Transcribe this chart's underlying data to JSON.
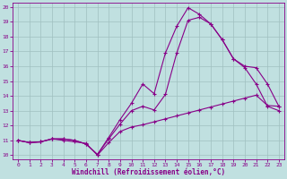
{
  "xlabel": "Windchill (Refroidissement éolien,°C)",
  "bg_color": "#c0e0e0",
  "grid_color": "#a0c0c0",
  "line_color": "#880088",
  "xlim": [
    -0.5,
    23.5
  ],
  "ylim": [
    9.7,
    20.3
  ],
  "yticks": [
    10,
    11,
    12,
    13,
    14,
    15,
    16,
    17,
    18,
    19,
    20
  ],
  "xticks": [
    0,
    1,
    2,
    3,
    4,
    5,
    6,
    7,
    8,
    9,
    10,
    11,
    12,
    13,
    14,
    15,
    16,
    17,
    18,
    19,
    20,
    21,
    22,
    23
  ],
  "curve1_x": [
    0,
    1,
    2,
    3,
    4,
    5,
    6,
    7,
    8,
    9,
    10,
    11,
    12,
    13,
    14,
    15,
    16,
    17,
    18,
    19,
    20,
    21,
    22,
    23
  ],
  "curve1_y": [
    11.0,
    10.85,
    10.9,
    11.1,
    11.0,
    10.9,
    10.8,
    10.0,
    10.85,
    11.6,
    11.9,
    12.05,
    12.25,
    12.45,
    12.65,
    12.85,
    13.05,
    13.25,
    13.45,
    13.65,
    13.85,
    14.05,
    13.35,
    13.3
  ],
  "curve2_x": [
    0,
    1,
    2,
    3,
    4,
    5,
    6,
    7,
    8,
    9,
    10,
    11,
    12,
    13,
    14,
    15,
    16,
    17,
    18,
    19,
    20,
    21,
    22,
    23
  ],
  "curve2_y": [
    11.0,
    10.85,
    10.9,
    11.1,
    11.1,
    11.0,
    10.75,
    10.05,
    11.1,
    12.1,
    13.0,
    13.3,
    13.05,
    14.1,
    16.9,
    19.1,
    19.3,
    18.85,
    17.8,
    16.5,
    16.0,
    15.9,
    14.8,
    13.3
  ],
  "curve3_x": [
    0,
    1,
    2,
    3,
    4,
    5,
    6,
    7,
    8,
    9,
    10,
    11,
    12,
    13,
    14,
    15,
    16,
    17,
    18,
    19,
    20,
    21,
    22,
    23
  ],
  "curve3_y": [
    11.0,
    10.85,
    10.9,
    11.1,
    11.1,
    11.0,
    10.75,
    10.05,
    11.2,
    12.4,
    13.5,
    14.8,
    14.15,
    16.9,
    18.7,
    19.95,
    19.5,
    18.85,
    17.8,
    16.5,
    15.9,
    14.8,
    13.3,
    13.0
  ]
}
